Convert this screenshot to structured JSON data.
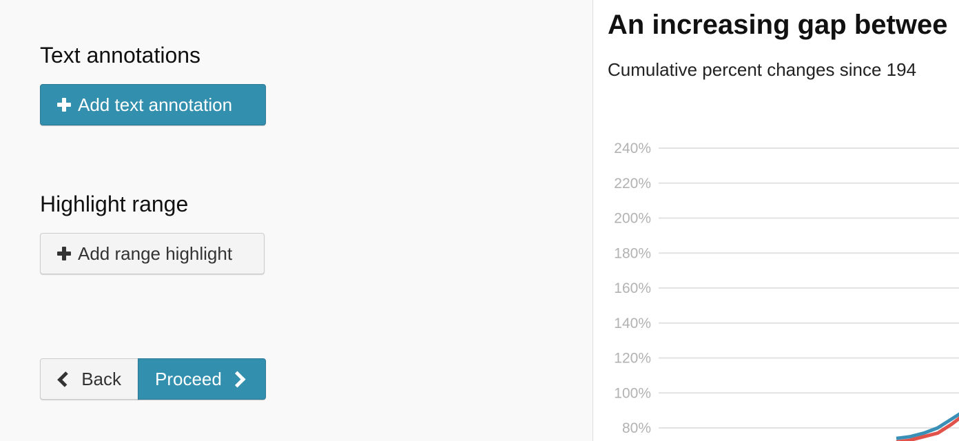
{
  "editor": {
    "text_annotations": {
      "title": "Text annotations",
      "add_label": "Add text annotation"
    },
    "highlight_range": {
      "title": "Highlight range",
      "add_label": "Add range highlight"
    },
    "nav": {
      "back_label": "Back",
      "proceed_label": "Proceed"
    }
  },
  "colors": {
    "primary": "#338fae",
    "series_blue": "#3a8fb7",
    "series_red": "#e0524a"
  },
  "preview": {
    "title": "An increasing gap betwee",
    "subtitle": "Cumulative percent changes since 194"
  },
  "chart_data": {
    "type": "line",
    "y_ticks": [
      "240%",
      "220%",
      "200%",
      "180%",
      "160%",
      "140%",
      "120%",
      "100%",
      "80%"
    ],
    "y_tick_values": [
      240,
      220,
      200,
      180,
      160,
      140,
      120,
      100,
      80
    ],
    "ylim": [
      80,
      240
    ],
    "grid": true,
    "series": [
      {
        "color": "#3a8fb7",
        "values": [
          74,
          75,
          77,
          80,
          85,
          90
        ]
      },
      {
        "color": "#e0524a",
        "values": [
          72,
          73,
          75,
          77,
          82,
          88
        ]
      }
    ]
  }
}
